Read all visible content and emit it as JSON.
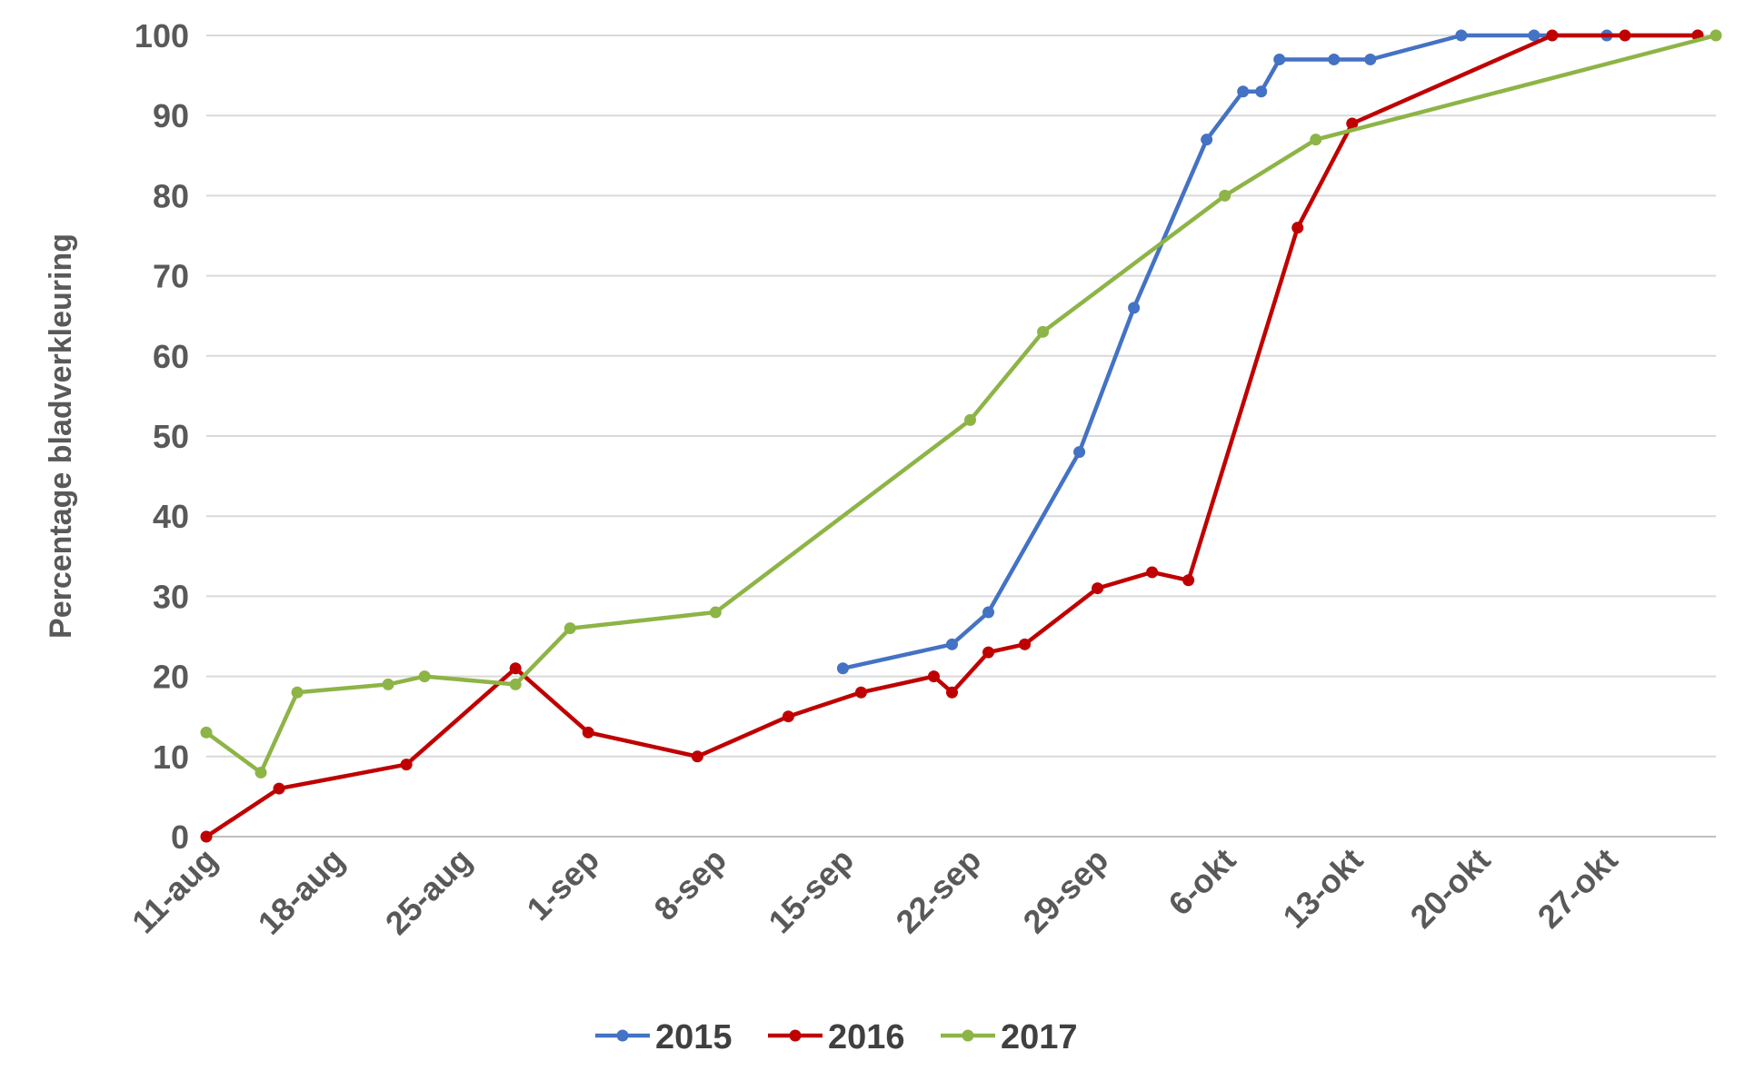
{
  "chart_data": {
    "type": "line",
    "title": "",
    "xlabel": "",
    "ylabel": "Percentage bladverkleuring",
    "x_axis": {
      "type": "date",
      "range": [
        "11-aug",
        "2-nov"
      ],
      "tick_labels": [
        "11-aug",
        "18-aug",
        "25-aug",
        "1-sep",
        "8-sep",
        "15-sep",
        "22-sep",
        "29-sep",
        "6-okt",
        "13-okt",
        "20-okt",
        "27-okt"
      ]
    },
    "y_axis": {
      "range": [
        0,
        100
      ],
      "tick_labels": [
        "0",
        "10",
        "20",
        "30",
        "40",
        "50",
        "60",
        "70",
        "80",
        "90",
        "100"
      ]
    },
    "grid": {
      "horizontal": true,
      "vertical": false
    },
    "legend": {
      "position": "bottom"
    },
    "series": [
      {
        "name": "2015",
        "color": "#4472C4",
        "points": [
          {
            "x": "15-sep",
            "y": 21
          },
          {
            "x": "21-sep",
            "y": 24
          },
          {
            "x": "23-sep",
            "y": 28
          },
          {
            "x": "28-sep",
            "y": 48
          },
          {
            "x": "1-okt",
            "y": 66
          },
          {
            "x": "5-okt",
            "y": 87
          },
          {
            "x": "7-okt",
            "y": 93
          },
          {
            "x": "8-okt",
            "y": 93
          },
          {
            "x": "9-okt",
            "y": 97
          },
          {
            "x": "12-okt",
            "y": 97
          },
          {
            "x": "14-okt",
            "y": 97
          },
          {
            "x": "19-okt",
            "y": 100
          },
          {
            "x": "23-okt",
            "y": 100
          },
          {
            "x": "27-okt",
            "y": 100
          },
          {
            "x": "1-nov",
            "y": 100
          }
        ]
      },
      {
        "name": "2016",
        "color": "#C00000",
        "points": [
          {
            "x": "11-aug",
            "y": 0
          },
          {
            "x": "15-aug",
            "y": 6
          },
          {
            "x": "22-aug",
            "y": 9
          },
          {
            "x": "28-aug",
            "y": 21
          },
          {
            "x": "1-sep",
            "y": 13
          },
          {
            "x": "7-sep",
            "y": 10
          },
          {
            "x": "12-sep",
            "y": 15
          },
          {
            "x": "16-sep",
            "y": 18
          },
          {
            "x": "20-sep",
            "y": 20
          },
          {
            "x": "21-sep",
            "y": 18
          },
          {
            "x": "23-sep",
            "y": 23
          },
          {
            "x": "25-sep",
            "y": 24
          },
          {
            "x": "29-sep",
            "y": 31
          },
          {
            "x": "2-okt",
            "y": 33
          },
          {
            "x": "4-okt",
            "y": 32
          },
          {
            "x": "10-okt",
            "y": 76
          },
          {
            "x": "13-okt",
            "y": 89
          },
          {
            "x": "24-okt",
            "y": 100
          },
          {
            "x": "28-okt",
            "y": 100
          },
          {
            "x": "1-nov",
            "y": 100
          }
        ]
      },
      {
        "name": "2017",
        "color": "#8DB446",
        "points": [
          {
            "x": "11-aug",
            "y": 13
          },
          {
            "x": "14-aug",
            "y": 8
          },
          {
            "x": "16-aug",
            "y": 18
          },
          {
            "x": "21-aug",
            "y": 19
          },
          {
            "x": "23-aug",
            "y": 20
          },
          {
            "x": "28-aug",
            "y": 19
          },
          {
            "x": "31-aug",
            "y": 26
          },
          {
            "x": "8-sep",
            "y": 28
          },
          {
            "x": "22-sep",
            "y": 52
          },
          {
            "x": "26-sep",
            "y": 63
          },
          {
            "x": "6-okt",
            "y": 80
          },
          {
            "x": "11-okt",
            "y": 87
          },
          {
            "x": "2-nov",
            "y": 100
          }
        ]
      }
    ]
  }
}
